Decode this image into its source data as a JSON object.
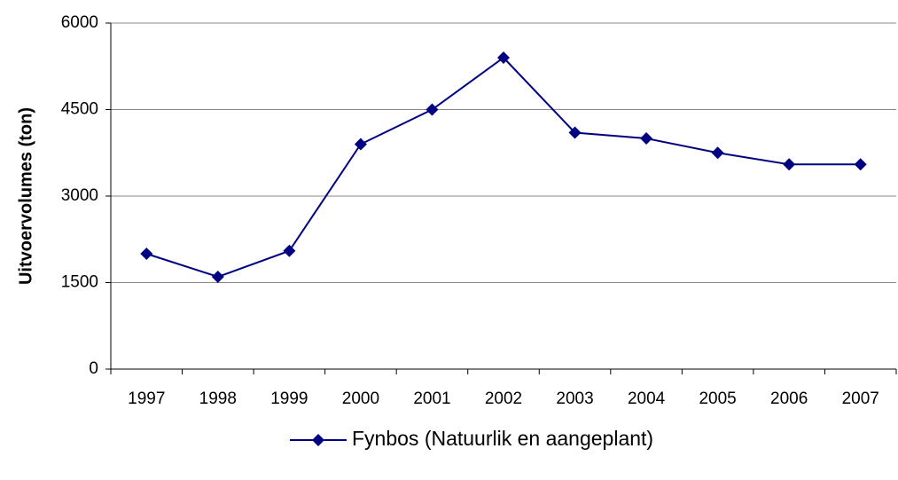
{
  "chart_data": {
    "type": "line",
    "y_label": "Uitvoervolumes (ton)",
    "categories": [
      "1997",
      "1998",
      "1999",
      "2000",
      "2001",
      "2002",
      "2003",
      "2004",
      "2005",
      "2006",
      "2007"
    ],
    "series": [
      {
        "name": "Fynbos (Natuurlik en aangeplant)",
        "color": "#000080",
        "values": [
          2000,
          1600,
          2050,
          3900,
          4500,
          5400,
          4100,
          4000,
          3750,
          3550,
          3550
        ]
      }
    ],
    "ylim": [
      0,
      6000
    ],
    "yticks": [
      0,
      1500,
      3000,
      4500,
      6000
    ],
    "grid": true,
    "legend": "bottom"
  }
}
